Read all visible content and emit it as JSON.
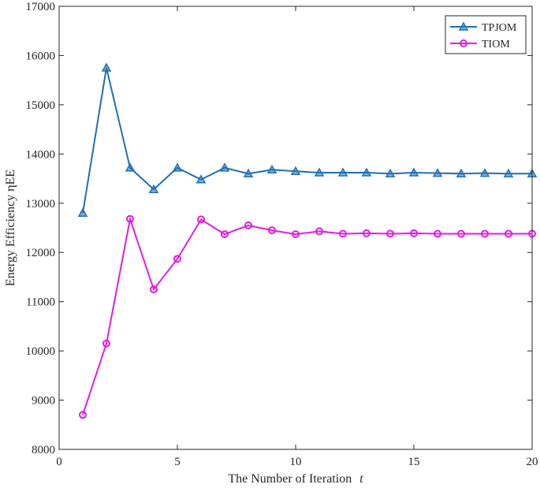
{
  "chart_data": {
    "type": "line",
    "title": "",
    "xlabel": "The Number of Iteration",
    "xlabel_var": "t",
    "ylabel": "Energy Efficiency ηEE",
    "xlim": [
      0,
      20
    ],
    "ylim": [
      8000,
      17000
    ],
    "xticks": [
      0,
      5,
      10,
      15,
      20
    ],
    "yticks": [
      8000,
      9000,
      10000,
      11000,
      12000,
      13000,
      14000,
      15000,
      16000,
      17000
    ],
    "grid": false,
    "legend_position": "top-right",
    "x": [
      1,
      2,
      3,
      4,
      5,
      6,
      7,
      8,
      9,
      10,
      11,
      12,
      13,
      14,
      15,
      16,
      17,
      18,
      19,
      20
    ],
    "series": [
      {
        "name": "TPJOM",
        "color": "#1f6fb4",
        "marker": "triangle",
        "values": [
          12800,
          15750,
          13720,
          13280,
          13720,
          13480,
          13720,
          13600,
          13680,
          13650,
          13620,
          13620,
          13620,
          13600,
          13620,
          13610,
          13600,
          13610,
          13600,
          13600
        ]
      },
      {
        "name": "TIOM",
        "color": "#e619e6",
        "marker": "circle",
        "values": [
          8700,
          10150,
          12680,
          11250,
          11870,
          12670,
          12370,
          12550,
          12450,
          12370,
          12430,
          12380,
          12390,
          12380,
          12390,
          12380,
          12380,
          12380,
          12380,
          12380
        ]
      }
    ]
  }
}
